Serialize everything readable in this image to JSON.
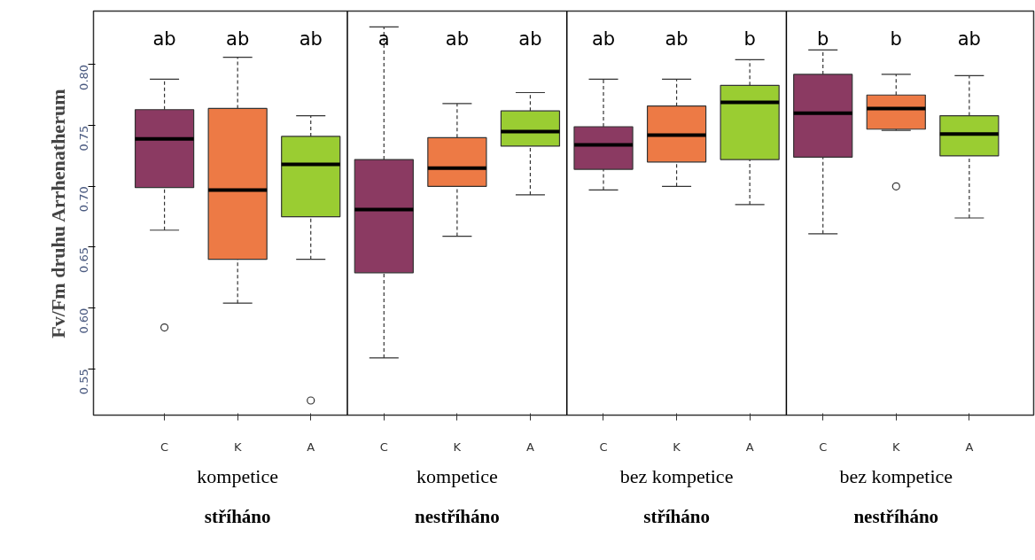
{
  "chart_data": {
    "type": "box",
    "ylabel": "Fv/Fm druhu Arrhenatherum",
    "categories": [
      "C",
      "K",
      "A",
      "C",
      "K",
      "A",
      "C",
      "K",
      "A",
      "C",
      "K",
      "A"
    ],
    "colors": [
      "#8b3a62",
      "#ed7a45",
      "#9acd32",
      "#8b3a62",
      "#ed7a45",
      "#9acd32",
      "#8b3a62",
      "#ed7a45",
      "#9acd32",
      "#8b3a62",
      "#ed7a45",
      "#9acd32"
    ],
    "boxes": [
      {
        "low": 0.664,
        "q1": 0.699,
        "median": 0.739,
        "q3": 0.763,
        "high": 0.788,
        "outliers": [
          0.584
        ]
      },
      {
        "low": 0.604,
        "q1": 0.64,
        "median": 0.697,
        "q3": 0.764,
        "high": 0.806
      },
      {
        "low": 0.64,
        "q1": 0.675,
        "median": 0.718,
        "q3": 0.741,
        "high": 0.758,
        "outliers": [
          0.524
        ]
      },
      {
        "low": 0.559,
        "q1": 0.629,
        "median": 0.681,
        "q3": 0.722,
        "high": 0.831
      },
      {
        "low": 0.659,
        "q1": 0.7,
        "median": 0.715,
        "q3": 0.74,
        "high": 0.768
      },
      {
        "low": 0.693,
        "q1": 0.733,
        "median": 0.745,
        "q3": 0.762,
        "high": 0.777
      },
      {
        "low": 0.697,
        "q1": 0.714,
        "median": 0.734,
        "q3": 0.749,
        "high": 0.788
      },
      {
        "low": 0.7,
        "q1": 0.72,
        "median": 0.742,
        "q3": 0.766,
        "high": 0.788
      },
      {
        "low": 0.685,
        "q1": 0.722,
        "median": 0.769,
        "q3": 0.783,
        "high": 0.804
      },
      {
        "low": 0.661,
        "q1": 0.724,
        "median": 0.76,
        "q3": 0.792,
        "high": 0.812
      },
      {
        "low": 0.746,
        "q1": 0.747,
        "median": 0.764,
        "q3": 0.775,
        "high": 0.792,
        "outliers": [
          0.7
        ]
      },
      {
        "low": 0.674,
        "q1": 0.725,
        "median": 0.743,
        "q3": 0.758,
        "high": 0.791
      }
    ],
    "ylim": [
      0.512,
      0.844
    ],
    "yticks": [
      0.55,
      {
        "value": 0.6,
        "label": "0.60"
      },
      0.65,
      {
        "value": 0.7,
        "label": "0.70"
      },
      0.75,
      {
        "value": 0.8,
        "label": "0.80"
      }
    ],
    "annotations": [
      "ab",
      "ab",
      "ab",
      "a",
      "ab",
      "ab",
      "ab",
      "ab",
      "b",
      "b",
      "b",
      "ab",
      "kompetice",
      "kompetice",
      "bez kompetice",
      "bez kompetice",
      "stříháno",
      "nestříháno",
      "stříháno",
      "nestříháno"
    ],
    "grid": false
  }
}
